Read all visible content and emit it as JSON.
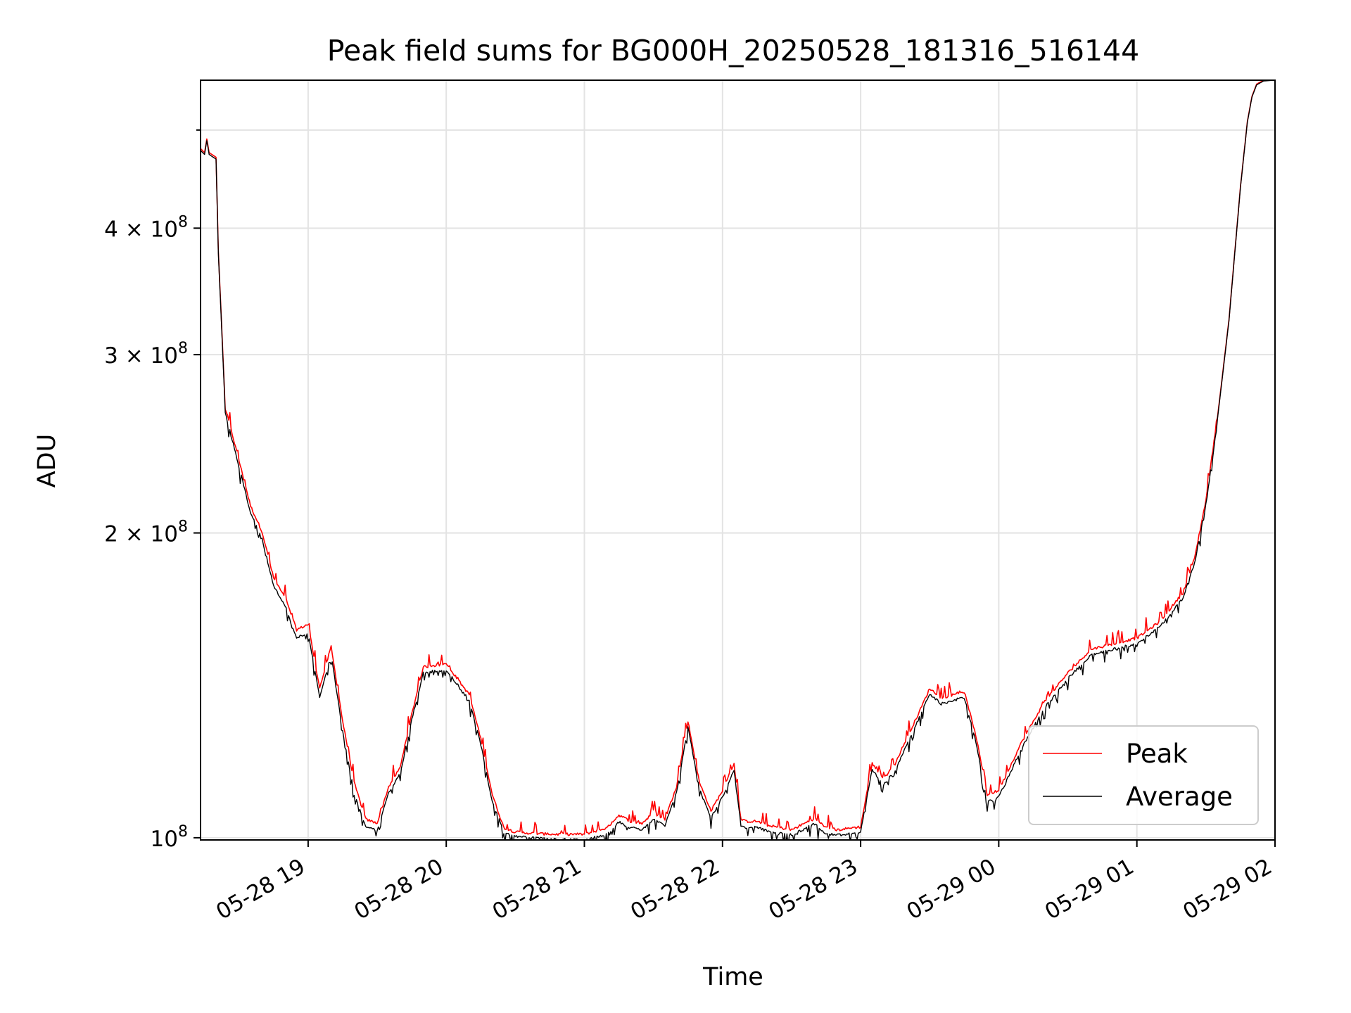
{
  "chart_data": {
    "type": "line",
    "title": "Peak field sums for BG000H_20250528_181316_516144",
    "xlabel": "Time",
    "ylabel": "ADU",
    "y_scale": "log",
    "ylim": [
      99500000,
      560000000
    ],
    "xlim": [
      "05-28 18:13:16",
      "05-29 02:00:00"
    ],
    "grid": true,
    "legend_position": "lower-right",
    "x_ticks": [
      "05-28 19",
      "05-28 20",
      "05-28 21",
      "05-28 22",
      "05-28 23",
      "05-29 00",
      "05-29 01",
      "05-29 02"
    ],
    "y_ticks": [
      {
        "value": 100000000,
        "label": "10",
        "sup": "8"
      },
      {
        "value": 200000000,
        "label": "2 × 10",
        "sup": "8"
      },
      {
        "value": 300000000,
        "label": "3 × 10",
        "sup": "8"
      },
      {
        "value": 400000000,
        "label": "4 × 10",
        "sup": "8"
      }
    ],
    "series": [
      {
        "name": "Peak",
        "color": "#ff0000",
        "noise": "up",
        "x": [
          "05-28 18:13",
          "05-28 18:15",
          "05-28 18:16",
          "05-28 18:17",
          "05-28 18:20",
          "05-28 18:21",
          "05-28 18:23",
          "05-28 18:24",
          "05-28 18:26",
          "05-28 18:30",
          "05-28 18:35",
          "05-28 18:40",
          "05-28 18:45",
          "05-28 18:50",
          "05-28 18:55",
          "05-28 19:00",
          "05-28 19:05",
          "05-28 19:10",
          "05-28 19:15",
          "05-28 19:20",
          "05-28 19:25",
          "05-28 19:30",
          "05-28 19:35",
          "05-28 19:40",
          "05-28 19:45",
          "05-28 19:50",
          "05-28 20:00",
          "05-28 20:10",
          "05-28 20:15",
          "05-28 20:20",
          "05-28 20:25",
          "05-28 20:30",
          "05-28 20:35",
          "05-28 20:45",
          "05-28 21:00",
          "05-28 21:10",
          "05-28 21:15",
          "05-28 21:20",
          "05-28 21:25",
          "05-28 21:30",
          "05-28 21:35",
          "05-28 21:40",
          "05-28 21:45",
          "05-28 21:50",
          "05-28 21:55",
          "05-28 22:00",
          "05-28 22:05",
          "05-28 22:08",
          "05-28 22:10",
          "05-28 22:15",
          "05-28 22:20",
          "05-28 22:30",
          "05-28 22:40",
          "05-28 22:45",
          "05-28 22:50",
          "05-28 23:00",
          "05-28 23:05",
          "05-28 23:10",
          "05-28 23:15",
          "05-28 23:20",
          "05-28 23:25",
          "05-28 23:30",
          "05-28 23:35",
          "05-28 23:40",
          "05-28 23:45",
          "05-28 23:50",
          "05-28 23:55",
          "05-29 00:00",
          "05-29 00:10",
          "05-29 00:20",
          "05-29 00:30",
          "05-29 00:40",
          "05-29 00:50",
          "05-29 01:00",
          "05-29 01:10",
          "05-29 01:20",
          "05-29 01:25",
          "05-29 01:30",
          "05-29 01:35",
          "05-29 01:40",
          "05-29 01:45",
          "05-29 01:48",
          "05-29 01:50",
          "05-29 01:52",
          "05-29 01:55",
          "05-29 02:00"
        ],
        "y": [
          480000000,
          475000000,
          490000000,
          475000000,
          470000000,
          380000000,
          300000000,
          265000000,
          255000000,
          235000000,
          212000000,
          200000000,
          180000000,
          172000000,
          160000000,
          162000000,
          140000000,
          154000000,
          130000000,
          113000000,
          104000000,
          103000000,
          112000000,
          117000000,
          132000000,
          147000000,
          148000000,
          138000000,
          125000000,
          110000000,
          102000000,
          101000000,
          100800000,
          100500000,
          100500000,
          102000000,
          105000000,
          103500000,
          103000000,
          105500000,
          104000000,
          112000000,
          130000000,
          113000000,
          106000000,
          111000000,
          118000000,
          104000000,
          103500000,
          103500000,
          102500000,
          101500000,
          104200000,
          102000000,
          101500000,
          102200000,
          118000000,
          114000000,
          118000000,
          125000000,
          132000000,
          140000000,
          137000000,
          138000000,
          139000000,
          126000000,
          110000000,
          111000000,
          124000000,
          136000000,
          145000000,
          153000000,
          155000000,
          157000000,
          163000000,
          174000000,
          188000000,
          215000000,
          260000000,
          325000000,
          440000000,
          510000000,
          540000000,
          555000000,
          560000000,
          560000000
        ]
      },
      {
        "name": "Average",
        "color": "#000000",
        "noise": "down",
        "x": [
          "05-28 18:13",
          "05-28 18:15",
          "05-28 18:16",
          "05-28 18:17",
          "05-28 18:20",
          "05-28 18:21",
          "05-28 18:23",
          "05-28 18:24",
          "05-28 18:26",
          "05-28 18:30",
          "05-28 18:35",
          "05-28 18:40",
          "05-28 18:45",
          "05-28 18:50",
          "05-28 18:55",
          "05-28 19:00",
          "05-28 19:05",
          "05-28 19:10",
          "05-28 19:15",
          "05-28 19:20",
          "05-28 19:25",
          "05-28 19:30",
          "05-28 19:35",
          "05-28 19:40",
          "05-28 19:45",
          "05-28 19:50",
          "05-28 20:00",
          "05-28 20:10",
          "05-28 20:15",
          "05-28 20:20",
          "05-28 20:25",
          "05-28 20:30",
          "05-28 20:35",
          "05-28 20:45",
          "05-28 21:00",
          "05-28 21:10",
          "05-28 21:15",
          "05-28 21:20",
          "05-28 21:25",
          "05-28 21:30",
          "05-28 21:35",
          "05-28 21:40",
          "05-28 21:45",
          "05-28 21:50",
          "05-28 21:55",
          "05-28 22:00",
          "05-28 22:05",
          "05-28 22:08",
          "05-28 22:10",
          "05-28 22:15",
          "05-28 22:20",
          "05-28 22:30",
          "05-28 22:40",
          "05-28 22:45",
          "05-28 22:50",
          "05-28 23:00",
          "05-28 23:05",
          "05-28 23:10",
          "05-28 23:15",
          "05-28 23:20",
          "05-28 23:25",
          "05-28 23:30",
          "05-28 23:35",
          "05-28 23:40",
          "05-28 23:45",
          "05-28 23:50",
          "05-28 23:55",
          "05-29 00:00",
          "05-29 00:10",
          "05-29 00:20",
          "05-29 00:30",
          "05-29 00:40",
          "05-29 00:50",
          "05-29 01:00",
          "05-29 01:10",
          "05-29 01:20",
          "05-29 01:25",
          "05-29 01:30",
          "05-29 01:35",
          "05-29 01:40",
          "05-29 01:45",
          "05-29 01:48",
          "05-29 01:50",
          "05-29 01:52",
          "05-29 01:55",
          "05-29 02:00"
        ],
        "y": [
          478000000,
          473000000,
          488000000,
          473000000,
          468000000,
          378000000,
          298000000,
          263000000,
          253000000,
          233000000,
          210000000,
          198000000,
          178000000,
          170000000,
          158000000,
          160000000,
          138000000,
          152000000,
          128000000,
          111000000,
          103000000,
          102000000,
          111000000,
          116000000,
          131000000,
          146000000,
          147000000,
          137000000,
          124000000,
          109000000,
          101500000,
          100700000,
          100300000,
          100000000,
          99700000,
          101200000,
          104000000,
          102600000,
          102200000,
          104500000,
          103100000,
          111000000,
          129000000,
          112000000,
          105000000,
          110000000,
          117000000,
          103200000,
          102700000,
          102700000,
          101700000,
          100900000,
          103500000,
          101300000,
          100900000,
          101600000,
          117000000,
          113000000,
          117000000,
          124000000,
          131000000,
          139000000,
          136000000,
          137000000,
          138000000,
          125000000,
          109000000,
          110000000,
          123000000,
          135000000,
          144000000,
          152000000,
          154000000,
          156000000,
          162000000,
          173000000,
          187000000,
          214000000,
          259000000,
          324000000,
          439000000,
          509000000,
          539000000,
          554000000,
          559000000,
          560000000
        ]
      }
    ]
  }
}
